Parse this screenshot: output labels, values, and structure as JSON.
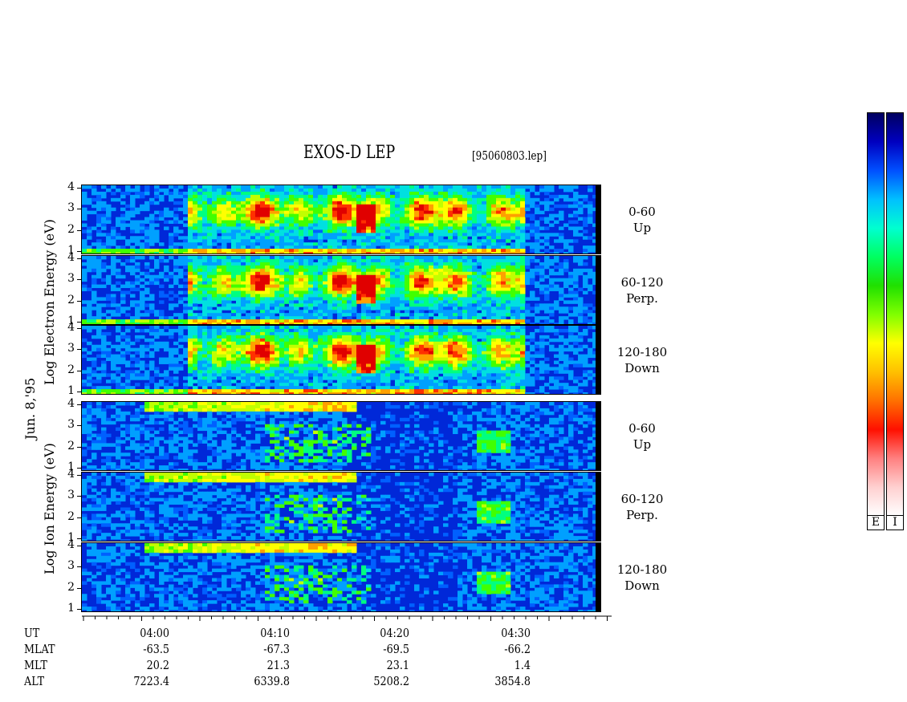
{
  "header": {
    "title": "EXOS-D LEP",
    "filename": "[95060803.lep]"
  },
  "left_labels": {
    "date": "Jun. 8,'95",
    "electron_axis": "Log  Electron  Energy (eV)",
    "ion_axis": "Log  Ion  Energy (eV)"
  },
  "colorbar": {
    "electron_box": "E",
    "ion_box": "I",
    "colors": [
      "#000060",
      "#0000c0",
      "#0050ff",
      "#00c0ff",
      "#00ffd0",
      "#00ff60",
      "#20e000",
      "#80ff00",
      "#ffff00",
      "#ffc000",
      "#ff7000",
      "#ff1000",
      "#ff8080",
      "#ffd0d0",
      "#ffffff"
    ]
  },
  "chart_data": {
    "type": "heatmap",
    "title": "EXOS-D LEP",
    "xlabel": "UT",
    "ylabel": "Log Energy (eV)",
    "x_range": [
      "03:55",
      "04:37"
    ],
    "y_ticks": [
      "1",
      "2",
      "3",
      "4"
    ],
    "panels": [
      {
        "species": "Electron",
        "pitch_range": "0-60",
        "direction": "Up"
      },
      {
        "species": "Electron",
        "pitch_range": "60-120",
        "direction": "Perp."
      },
      {
        "species": "Electron",
        "pitch_range": "120-180",
        "direction": "Down"
      },
      {
        "species": "Ion",
        "pitch_range": "0-60",
        "direction": "Up"
      },
      {
        "species": "Ion",
        "pitch_range": "60-120",
        "direction": "Perp."
      },
      {
        "species": "Ion",
        "pitch_range": "120-180",
        "direction": "Down"
      }
    ],
    "footer_rows": [
      {
        "label": "UT",
        "values": [
          "04:00",
          "04:10",
          "04:20",
          "04:30"
        ]
      },
      {
        "label": "MLAT",
        "values": [
          "-63.5",
          "-67.3",
          "-69.5",
          "-66.2"
        ]
      },
      {
        "label": "MLT",
        "values": [
          "20.2",
          "21.3",
          "23.1",
          "1.4"
        ]
      },
      {
        "label": "ALT",
        "values": [
          "7223.4",
          "6339.8",
          "5208.2",
          "3854.8"
        ]
      }
    ]
  }
}
